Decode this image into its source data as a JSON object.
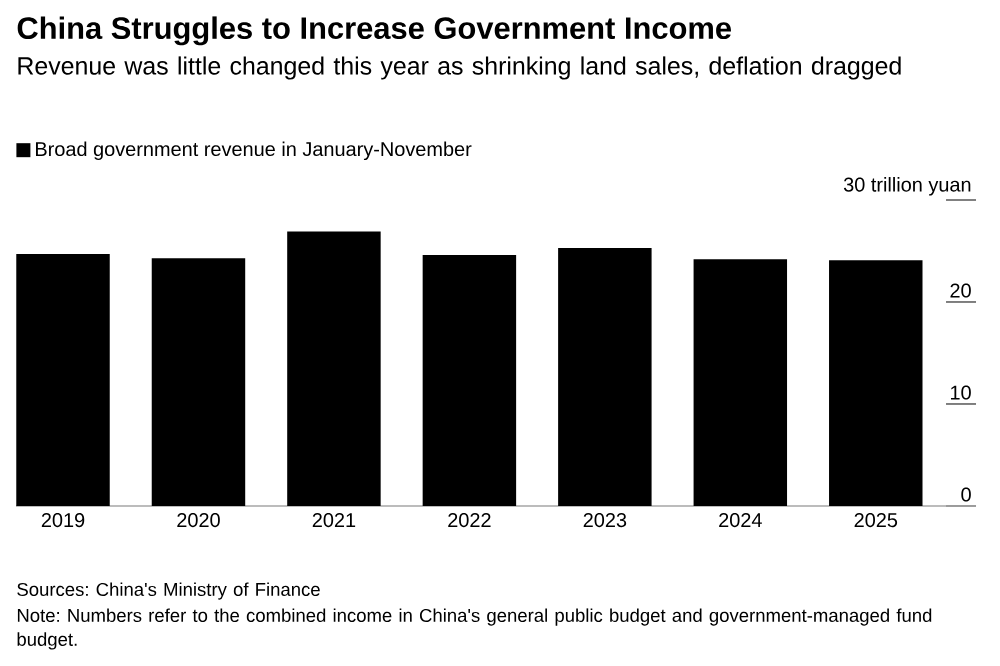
{
  "chart_data": {
    "type": "bar",
    "title": "China Struggles to Increase Government Income",
    "subtitle": "Revenue was little changed this year as shrinking land sales, deflation dragged",
    "categories": [
      "2019",
      "2020",
      "2021",
      "2022",
      "2023",
      "2024",
      "2025"
    ],
    "series": [
      {
        "name": "Broad government revenue in January-November",
        "color": "#000000",
        "values": [
          24.7,
          24.3,
          26.9,
          24.6,
          25.3,
          24.2,
          24.1
        ]
      }
    ],
    "ylim": [
      0,
      30
    ],
    "yticks": [
      0,
      10,
      20,
      {
        "value": 30,
        "label": "30 trillion yuan"
      }
    ],
    "legend": "top left",
    "grid": false,
    "annotations": [
      "Sources: China's Ministry of Finance",
      "Note: Numbers refer to the combined income in China's general public budget and government-managed fund budget."
    ]
  }
}
